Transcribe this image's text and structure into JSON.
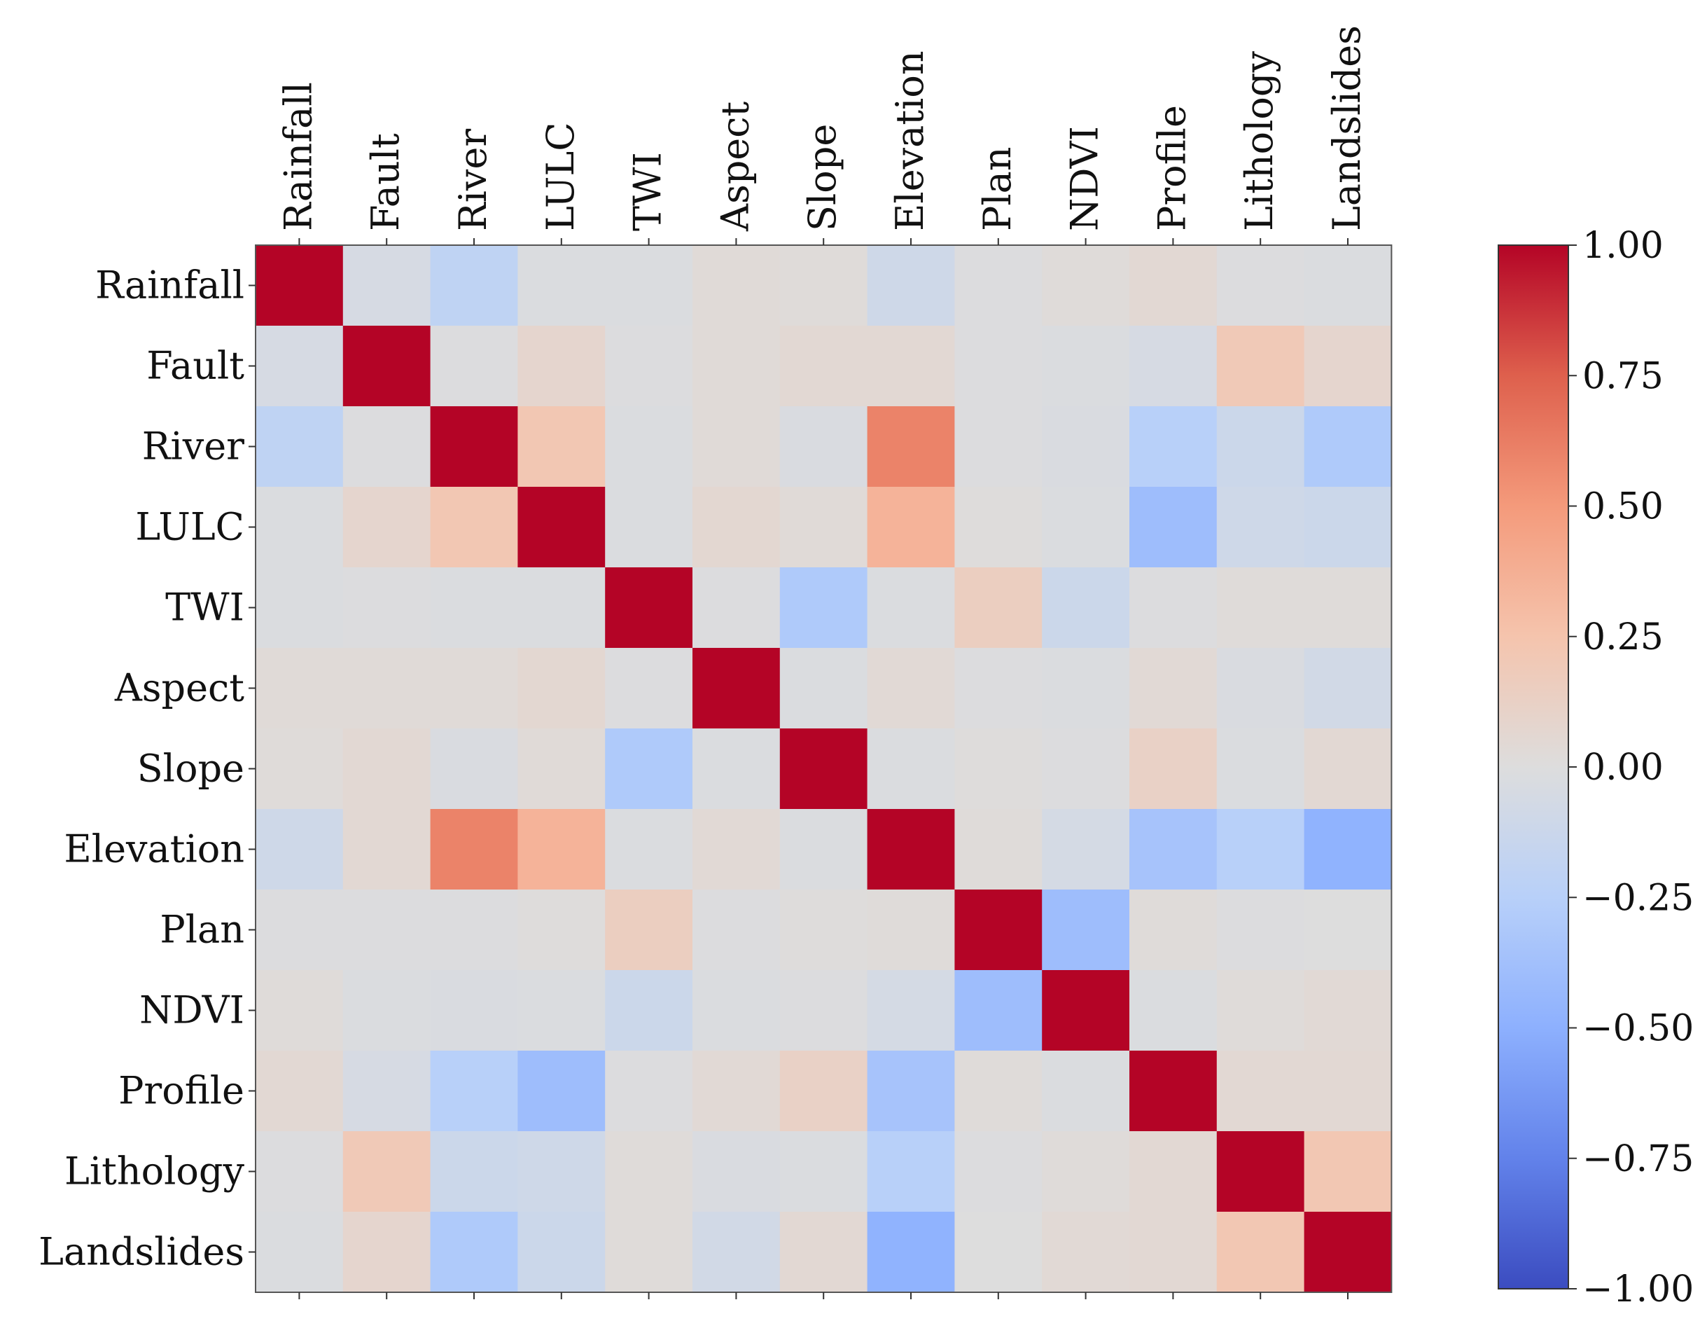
{
  "chart_data": {
    "type": "heatmap",
    "title": "",
    "xlabel": "",
    "ylabel": "",
    "variables": [
      "Rainfall",
      "Fault",
      "River",
      "LULC",
      "TWI",
      "Aspect",
      "Slope",
      "Elevation",
      "Plan",
      "NDVI",
      "Profile",
      "Lithology",
      "Landslides"
    ],
    "matrix": [
      [
        1.0,
        -0.05,
        -0.2,
        -0.02,
        -0.02,
        0.03,
        0.02,
        -0.1,
        -0.01,
        0.02,
        0.05,
        -0.01,
        -0.02
      ],
      [
        -0.05,
        1.0,
        -0.01,
        0.08,
        -0.01,
        0.03,
        0.05,
        0.05,
        -0.01,
        -0.02,
        -0.05,
        0.2,
        0.08
      ],
      [
        -0.2,
        -0.01,
        1.0,
        0.22,
        -0.02,
        0.03,
        -0.03,
        0.6,
        -0.01,
        -0.03,
        -0.25,
        -0.12,
        -0.3
      ],
      [
        -0.02,
        0.08,
        0.22,
        1.0,
        -0.02,
        0.06,
        0.03,
        0.35,
        0.01,
        -0.02,
        -0.4,
        -0.1,
        -0.12
      ],
      [
        -0.02,
        -0.01,
        -0.02,
        -0.02,
        1.0,
        -0.01,
        -0.3,
        -0.02,
        0.15,
        -0.12,
        -0.01,
        0.02,
        0.02
      ],
      [
        0.03,
        0.03,
        0.03,
        0.06,
        -0.01,
        1.0,
        -0.02,
        0.04,
        -0.01,
        -0.02,
        0.04,
        -0.03,
        -0.08
      ],
      [
        0.02,
        0.05,
        -0.03,
        0.03,
        -0.3,
        -0.02,
        1.0,
        -0.02,
        0.01,
        -0.01,
        0.12,
        -0.02,
        0.05
      ],
      [
        -0.1,
        0.05,
        0.6,
        0.35,
        -0.02,
        0.04,
        -0.02,
        1.0,
        0.02,
        -0.06,
        -0.35,
        -0.25,
        -0.48
      ],
      [
        -0.01,
        -0.01,
        -0.01,
        0.01,
        0.15,
        -0.01,
        0.01,
        0.02,
        1.0,
        -0.4,
        0.02,
        -0.01,
        0.0
      ],
      [
        0.02,
        -0.02,
        -0.03,
        -0.02,
        -0.12,
        -0.02,
        -0.01,
        -0.06,
        -0.4,
        1.0,
        -0.02,
        0.02,
        0.04
      ],
      [
        0.05,
        -0.05,
        -0.25,
        -0.4,
        -0.01,
        0.04,
        0.12,
        -0.35,
        0.02,
        -0.02,
        1.0,
        0.05,
        0.05
      ],
      [
        -0.01,
        0.2,
        -0.12,
        -0.1,
        0.02,
        -0.03,
        -0.02,
        -0.25,
        -0.01,
        0.02,
        0.05,
        1.0,
        0.22
      ],
      [
        -0.02,
        0.08,
        -0.3,
        -0.12,
        0.02,
        -0.08,
        0.05,
        -0.48,
        0.0,
        0.04,
        0.05,
        0.22,
        1.0
      ]
    ],
    "colorbar": {
      "colormap": "coolwarm",
      "vmin": -1.0,
      "vmax": 1.0,
      "ticks": [
        1.0,
        0.75,
        0.5,
        0.25,
        0.0,
        -0.25,
        -0.5,
        -0.75,
        -1.0
      ],
      "tick_labels": [
        "1.00",
        "0.75",
        "0.50",
        "0.25",
        "0.00",
        "−0.25",
        "−0.50",
        "−0.75",
        "−1.00"
      ]
    },
    "grid": false,
    "legend": "colorbar-right"
  }
}
